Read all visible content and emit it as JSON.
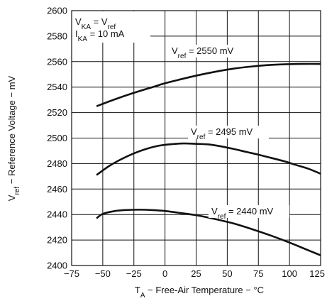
{
  "chart_data": {
    "type": "line",
    "xlabel": {
      "main": "T",
      "sub": "A",
      "rest": " − Free-Air Temperature − °C"
    },
    "ylabel": {
      "main": "V",
      "sub": "ref",
      "rest": " − Reference Voltage − mV"
    },
    "xlim": [
      -75,
      125
    ],
    "ylim": [
      2400,
      2600
    ],
    "x_ticks": [
      "−75",
      "−50",
      "−25",
      "0",
      "25",
      "50",
      "75",
      "100",
      "125"
    ],
    "y_ticks": [
      "2600",
      "2580",
      "2560",
      "2540",
      "2520",
      "2500",
      "2480",
      "2460",
      "2440",
      "2420",
      "2400"
    ],
    "grid": true,
    "conditions": [
      {
        "main": "V",
        "sub": "KA",
        "rest": " = V",
        "sub2": "ref"
      },
      {
        "main": "I",
        "sub": "KA",
        "rest": " = 10 mA",
        "sub2": ""
      }
    ],
    "series": [
      {
        "name": "V_ref = 2550 mV",
        "label": {
          "main": "V",
          "sub": "ref",
          "rest": " = 2550 mV"
        },
        "x": [
          -55,
          -40,
          -25,
          -10,
          0,
          10,
          25,
          40,
          55,
          70,
          85,
          100,
          110,
          125
        ],
        "y": [
          2525,
          2530.5,
          2535.5,
          2540,
          2543,
          2545.5,
          2549,
          2552,
          2554.5,
          2556.2,
          2557.4,
          2558,
          2558.2,
          2558.2
        ]
      },
      {
        "name": "V_ref = 2495 mV",
        "label": {
          "main": "V",
          "sub": "ref",
          "rest": " = 2495 mV"
        },
        "x": [
          -55,
          -45,
          -35,
          -25,
          -15,
          -5,
          5,
          15,
          25,
          35,
          45,
          55,
          65,
          75,
          85,
          95,
          105,
          115,
          125
        ],
        "y": [
          2471,
          2478,
          2483.5,
          2488,
          2491.5,
          2494,
          2495.2,
          2495.8,
          2495.5,
          2495,
          2493.5,
          2491.5,
          2489.2,
          2487,
          2484.5,
          2482,
          2479,
          2476,
          2472
        ]
      },
      {
        "name": "V_ref = 2440 mV",
        "label": {
          "main": "V",
          "sub": "ref",
          "rest": " = 2440 mV"
        },
        "x": [
          -55,
          -50,
          -40,
          -30,
          -20,
          -10,
          0,
          10,
          25,
          40,
          55,
          70,
          85,
          100,
          110,
          125
        ],
        "y": [
          2437,
          2440.5,
          2442.8,
          2443.6,
          2443.8,
          2443.5,
          2442.8,
          2441.5,
          2439.5,
          2436.5,
          2433,
          2428.5,
          2423.5,
          2418,
          2414,
          2408
        ]
      }
    ]
  }
}
